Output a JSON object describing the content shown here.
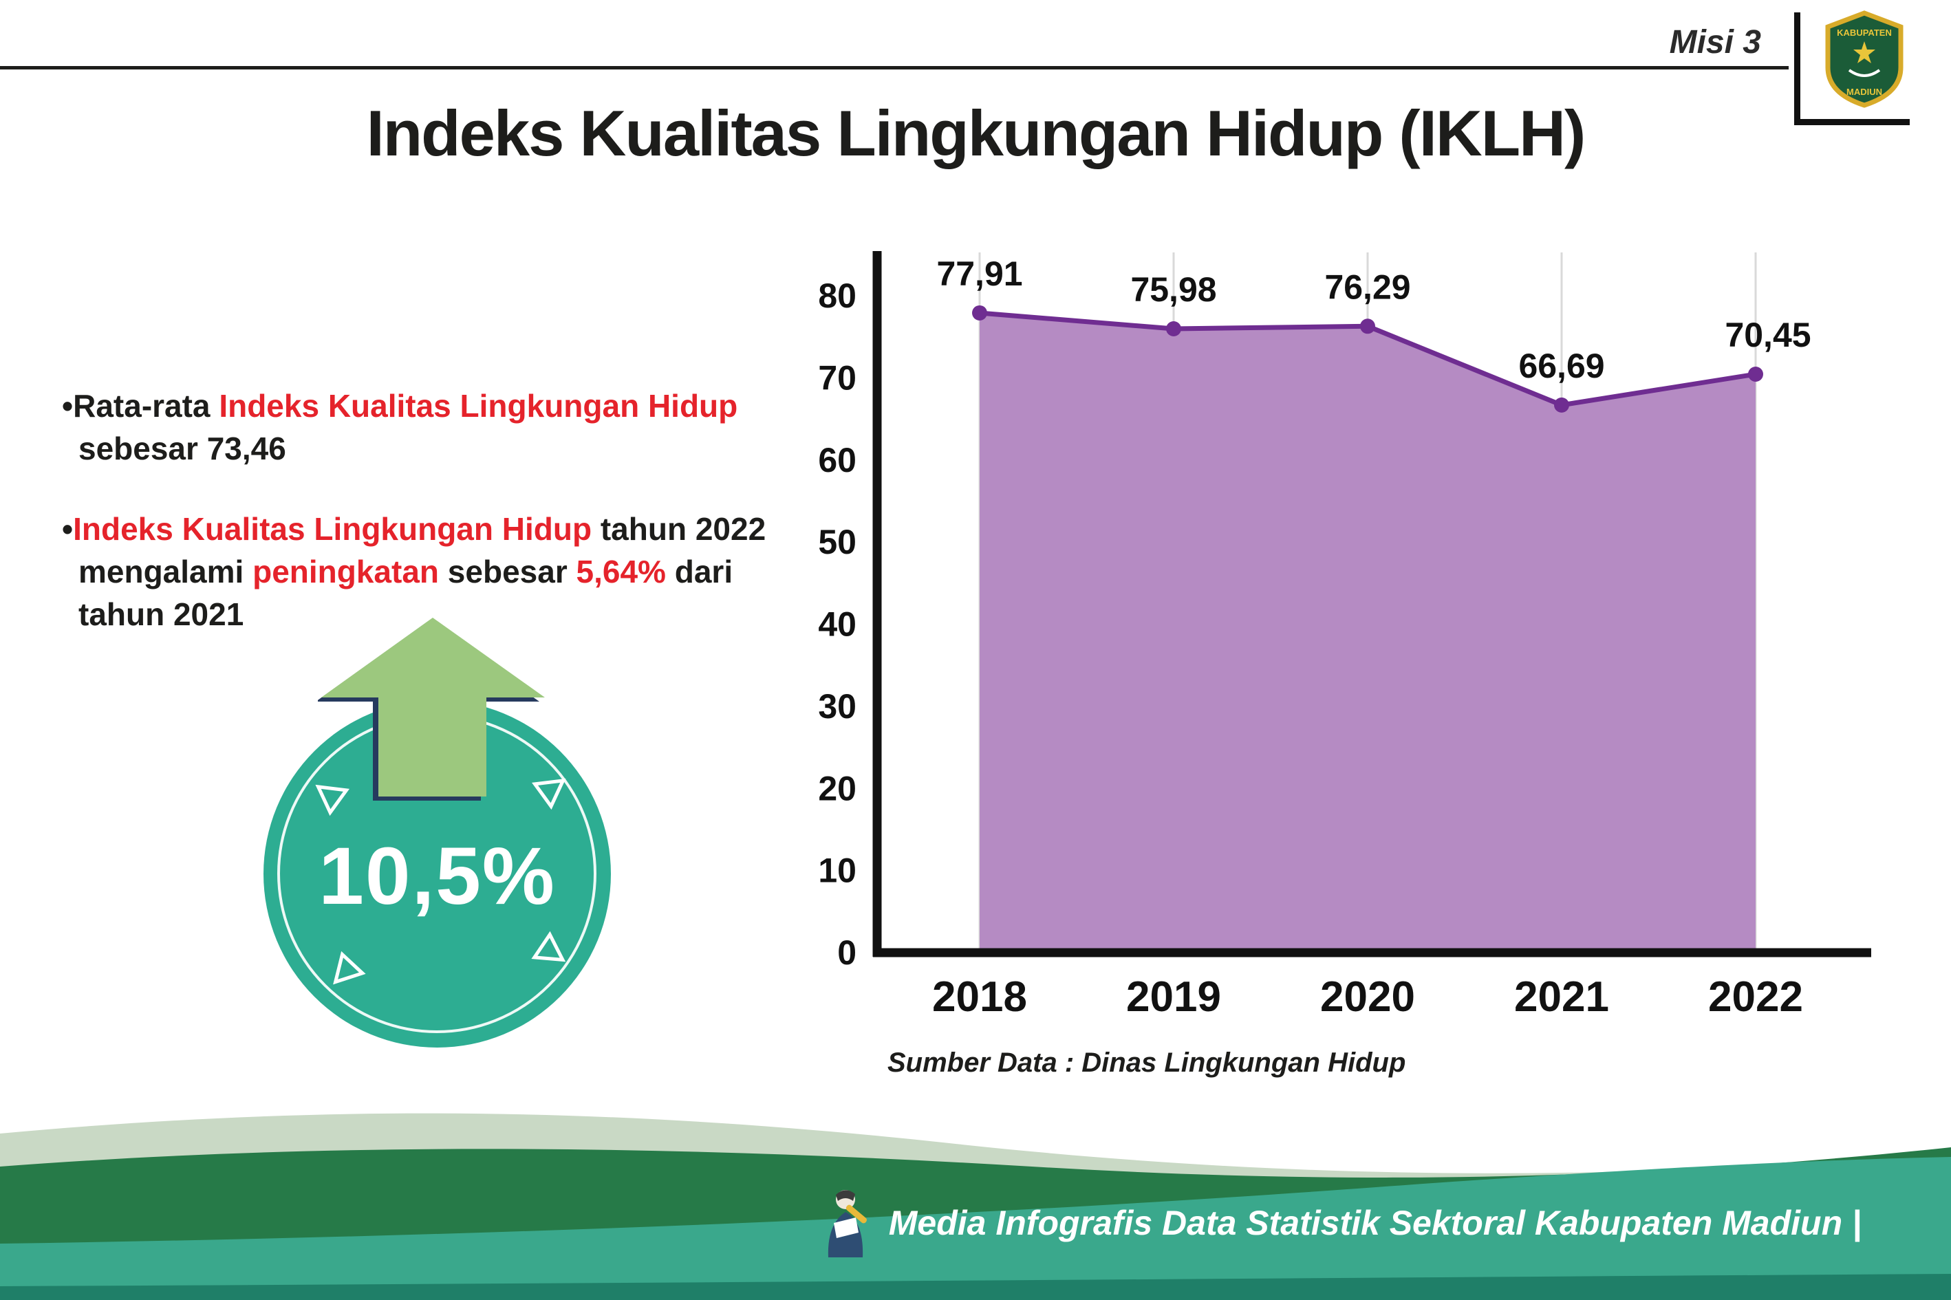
{
  "header": {
    "misi_label": "Misi 3",
    "title": "Indeks Kualitas Lingkungan Hidup (IKLH)"
  },
  "logo": {
    "name": "Kabupaten Madiun",
    "top_text": "KABUPATEN",
    "bottom_text": "MADIUN"
  },
  "bullet_marker": "•",
  "bullets": [
    {
      "segments": [
        {
          "t": "Rata-rata ",
          "c": "dark"
        },
        {
          "t": "Indeks Kualitas Lingkungan Hidup",
          "c": "red"
        },
        {
          "t": " sebesar 73,46",
          "c": "dark"
        }
      ]
    },
    {
      "segments": [
        {
          "t": "Indeks Kualitas Lingkungan Hidup",
          "c": "red"
        },
        {
          "t": " tahun 2022 mengalami ",
          "c": "dark"
        },
        {
          "t": "peningkatan",
          "c": "red"
        },
        {
          "t": " sebesar ",
          "c": "dark"
        },
        {
          "t": "5,64%",
          "c": "red"
        },
        {
          "t": " dari tahun 2021",
          "c": "dark"
        }
      ]
    }
  ],
  "badge": {
    "value": "10,5%"
  },
  "chart_data": {
    "type": "area",
    "categories": [
      "2018",
      "2019",
      "2020",
      "2021",
      "2022"
    ],
    "values": [
      77.91,
      75.98,
      76.29,
      66.69,
      70.45
    ],
    "point_labels": [
      "77,91",
      "75,98",
      "76,29",
      "66,69",
      "70,45"
    ],
    "xlabel": "",
    "ylabel": "",
    "ylim": [
      0,
      80
    ],
    "yticks": [
      0,
      10,
      20,
      30,
      40,
      50,
      60,
      70,
      80
    ],
    "grid": "vertical",
    "legend": "none",
    "source": "Sumber Data : Dinas Lingkungan Hidup",
    "colors": {
      "area_fill": "#b58bc3",
      "line": "#6f2d91",
      "marker": "#6f2d91",
      "grid": "#d9d9d9",
      "axis": "#111111"
    }
  },
  "footer": {
    "text": "Media Infografis Data Statistik Sektoral Kabupaten Madiun |"
  },
  "theme": {
    "red": "#e5232b",
    "dark": "#1d1d1b",
    "badge_teal": "#2dad92",
    "arrow_green": "#9cc87e",
    "arrow_outline_navy": "#263a5e",
    "footer_teal": "#3aa88c",
    "footer_dark_green": "#267a48",
    "footer_mint": "#c9d9c5",
    "footer_bottom": "#1f7f68"
  }
}
